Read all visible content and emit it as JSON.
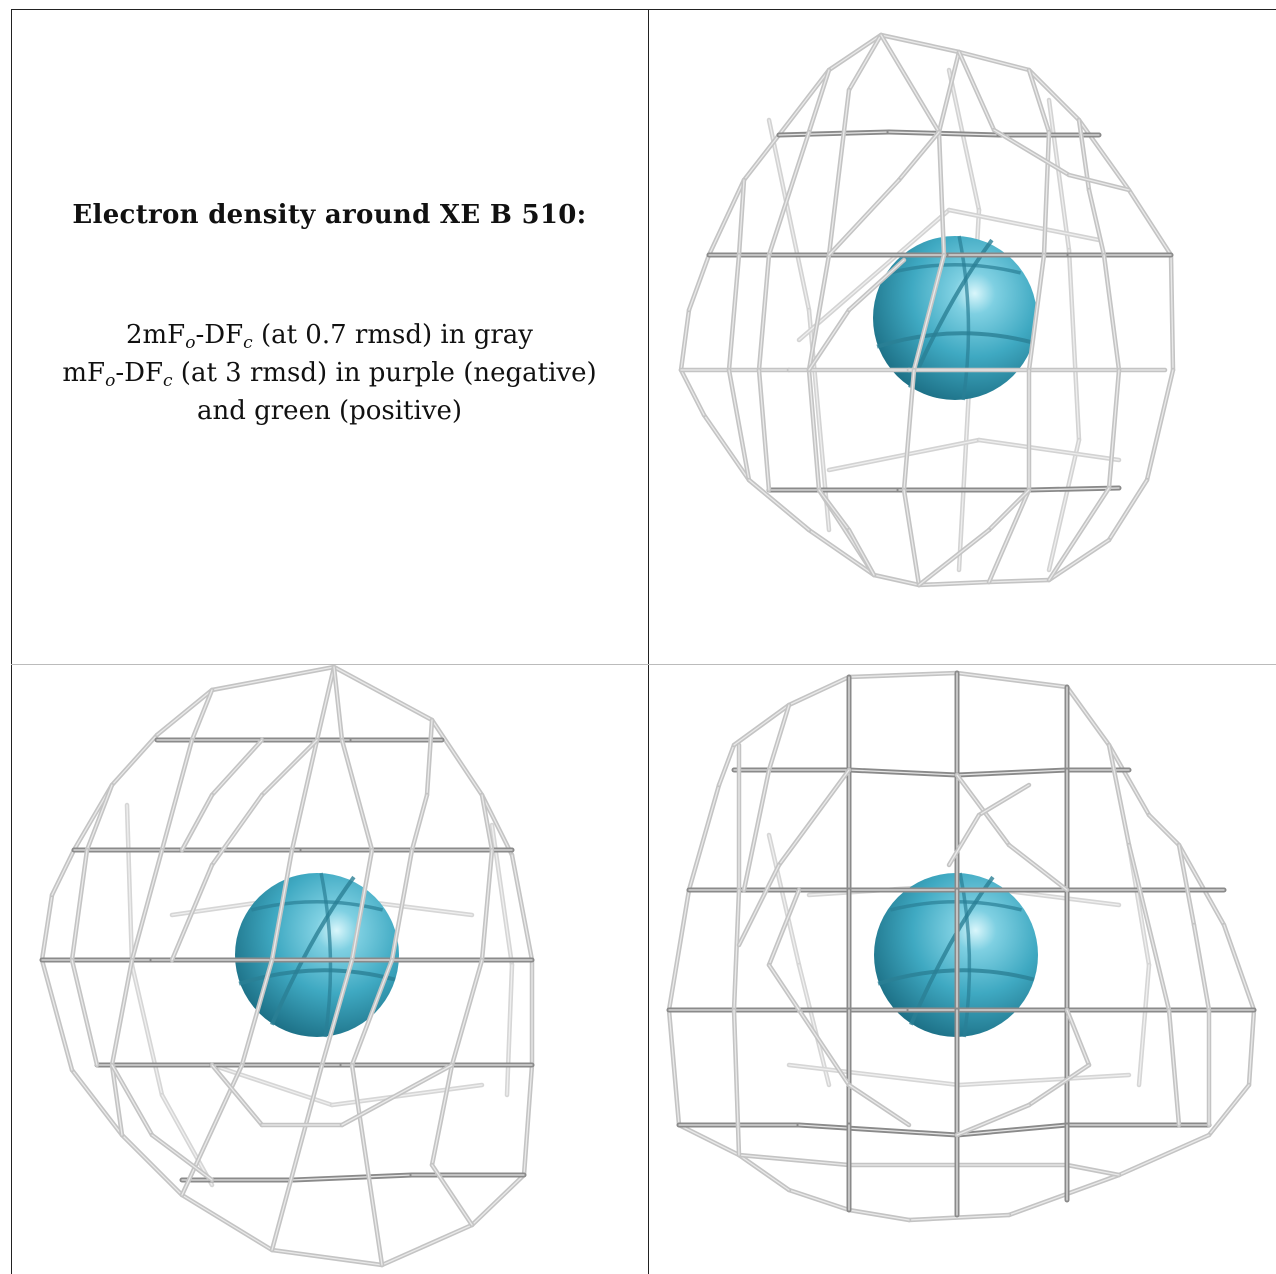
{
  "legend": {
    "title": "Electron density around XE B 510:",
    "lines": [
      {
        "pre": "2mF",
        "sub1": "o",
        "mid": "-DF",
        "sub2": "c",
        "post": " (at 0.7 rmsd) in gray"
      },
      {
        "pre": "mF",
        "sub1": "o",
        "mid": "-DF",
        "sub2": "c",
        "post": " (at 3 rmsd) in purple (negative)"
      },
      {
        "text": "and green (positive)"
      }
    ]
  },
  "views": [
    {
      "name": "view-top-right"
    },
    {
      "name": "view-bottom-left"
    },
    {
      "name": "view-bottom-right"
    }
  ],
  "colors": {
    "mesh": "#c4c4c4",
    "mesh_dark": "#8a8a8a",
    "atom": "#3fa9c2",
    "atom_highlight": "#d9f6fb",
    "atom_shadow": "#1c6f85",
    "background": "#ffffff",
    "frame": "#222222"
  }
}
